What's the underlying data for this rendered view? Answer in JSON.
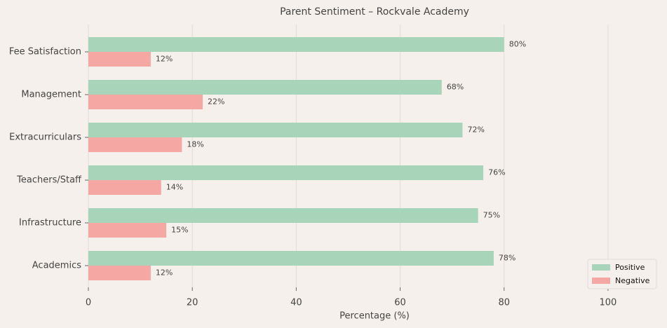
{
  "chart_data": {
    "type": "hbar",
    "title": "Parent Sentiment – Rockvale Academy",
    "xlabel": "Percentage (%)",
    "categories": [
      "Academics",
      "Infrastructure",
      "Teachers/Staff",
      "Extracurriculars",
      "Management",
      "Fee Satisfaction"
    ],
    "series": [
      {
        "name": "Positive",
        "color": "#a8d5ba",
        "values": [
          78,
          75,
          76,
          72,
          68,
          80
        ],
        "value_labels": [
          "78%",
          "75%",
          "76%",
          "72%",
          "68%",
          "80%"
        ]
      },
      {
        "name": "Negative",
        "color": "#f4a7a3",
        "values": [
          12,
          15,
          14,
          18,
          22,
          12
        ],
        "value_labels": [
          "12%",
          "15%",
          "14%",
          "18%",
          "22%",
          "12%"
        ]
      }
    ],
    "xlim": [
      0,
      110
    ],
    "xticks": [
      0,
      20,
      40,
      60,
      80,
      100
    ],
    "grid": true,
    "legend": "lower right"
  }
}
